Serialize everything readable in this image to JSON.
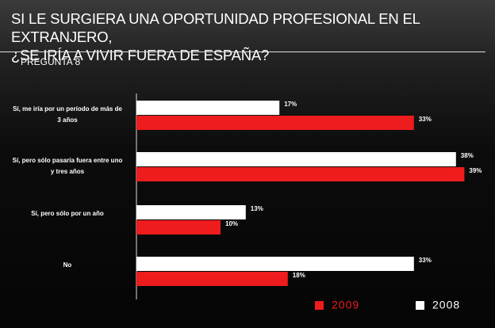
{
  "chart_data": {
    "type": "bar",
    "orientation": "horizontal",
    "title": "SI LE SURGIERA UNA OPORTUNIDAD PROFESIONAL EN EL EXTRANJERO,\n¿SE IRÍA A VIVIR FUERA DE ESPAÑA?",
    "subtitle": "PREGUNTA 8",
    "categories": [
      "Sí, me iría por un período de más de\n3 años",
      "Sí, pero sólo pasaría fuera entre uno\ny tres años",
      "Sí, pero sólo por un año",
      "No"
    ],
    "series": [
      {
        "name": "2009",
        "color": "#ee1c1c",
        "values": [
          33,
          39,
          10,
          18
        ],
        "value_labels": [
          "33%",
          "39%",
          "10%",
          "18%"
        ]
      },
      {
        "name": "2008",
        "color": "#ffffff",
        "values": [
          17,
          38,
          13,
          33
        ],
        "value_labels": [
          "17%",
          "38%",
          "13%",
          "33%"
        ]
      }
    ],
    "xlim": [
      0,
      40
    ],
    "legend": "bottom-right"
  }
}
